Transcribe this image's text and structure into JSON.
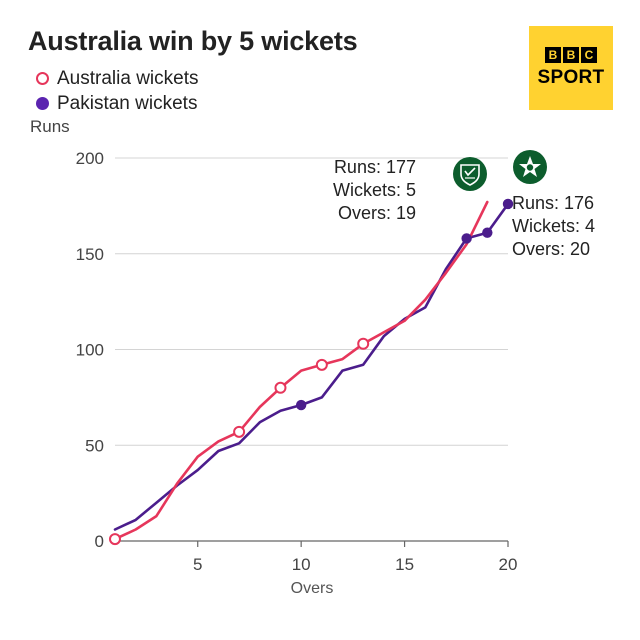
{
  "chart_data": {
    "type": "line",
    "title": "Australia win by 5 wickets",
    "xlabel": "Overs",
    "ylabel": "Runs",
    "xlim": [
      1,
      20
    ],
    "ylim": [
      0,
      200
    ],
    "x_ticks": [
      5,
      10,
      15,
      20
    ],
    "y_ticks": [
      0,
      50,
      100,
      150,
      200
    ],
    "grid": true,
    "legend_position": "top-left",
    "series": [
      {
        "name": "Australia",
        "color": "#e6365b",
        "x": [
          1,
          2,
          3,
          4,
          5,
          6,
          7,
          8,
          9,
          10,
          11,
          12,
          13,
          14,
          15,
          16,
          17,
          18,
          19
        ],
        "y": [
          1,
          6,
          13,
          30,
          44,
          52,
          57,
          70,
          80,
          89,
          92,
          95,
          103,
          109,
          115,
          126,
          140,
          155,
          177
        ],
        "wickets": [
          1,
          7,
          9,
          11,
          13
        ],
        "final": {
          "runs": 177,
          "wickets": 5,
          "overs": 19
        }
      },
      {
        "name": "Pakistan",
        "color": "#4b1d8c",
        "x": [
          1,
          2,
          3,
          4,
          5,
          6,
          7,
          8,
          9,
          10,
          11,
          12,
          13,
          14,
          15,
          16,
          17,
          18,
          19,
          20
        ],
        "y": [
          6,
          11,
          20,
          29,
          37,
          47,
          51,
          62,
          68,
          71,
          75,
          89,
          92,
          107,
          116,
          122,
          142,
          158,
          161,
          176
        ],
        "wickets": [
          10,
          18,
          19,
          20
        ],
        "final": {
          "runs": 176,
          "wickets": 4,
          "overs": 20
        }
      }
    ]
  },
  "legend": {
    "australia": "Australia wickets",
    "pakistan": "Pakistan wickets"
  },
  "logo": {
    "letters": [
      "B",
      "B",
      "C"
    ],
    "word": "SPORT"
  },
  "annotations": {
    "australia": {
      "runs": "Runs: 177",
      "wickets": "Wickets: 5",
      "overs": "Overs: 19"
    },
    "pakistan": {
      "runs": "Runs: 176",
      "wickets": "Wickets: 4",
      "overs": "Overs: 20"
    }
  },
  "icons": {
    "australia": "australia-crest-icon",
    "pakistan": "pakistan-star-icon"
  },
  "colors": {
    "australia": "#e6365b",
    "pakistan": "#4b1d8c",
    "badge": "#0d5d2d",
    "logo_bg": "#ffd230"
  }
}
